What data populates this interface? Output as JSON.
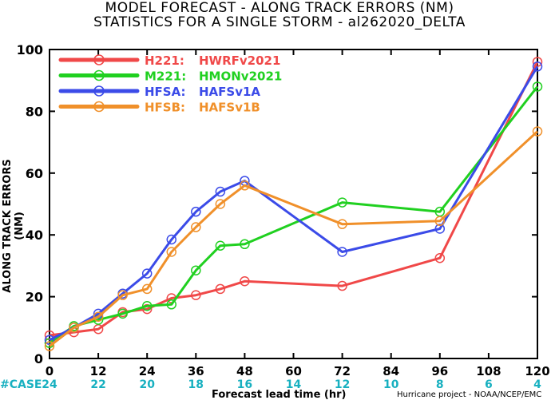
{
  "title_line1": "MODEL FORECAST - ALONG TRACK ERRORS (NM)",
  "title_line2": "STATISTICS FOR A SINGLE STORM - al262020_DELTA",
  "case_label": "#CASE",
  "credit": "Hurricane project - NOAA/NCEP/EMC",
  "chart_data": {
    "type": "line",
    "xlabel": "Forecast lead time (hr)",
    "ylabel": "ALONG TRACK ERRORS (NM)",
    "xlim": [
      0,
      120
    ],
    "ylim": [
      0,
      100
    ],
    "xticks": [
      0,
      12,
      24,
      36,
      48,
      60,
      72,
      84,
      96,
      108,
      120
    ],
    "yticks": [
      0,
      20,
      40,
      60,
      80,
      100
    ],
    "case_counts": [
      {
        "x": 0,
        "n": "24"
      },
      {
        "x": 12,
        "n": "22"
      },
      {
        "x": 24,
        "n": "20"
      },
      {
        "x": 36,
        "n": "18"
      },
      {
        "x": 48,
        "n": "16"
      },
      {
        "x": 60,
        "n": "14"
      },
      {
        "x": 72,
        "n": "12"
      },
      {
        "x": 84,
        "n": "10"
      },
      {
        "x": 96,
        "n": "8"
      },
      {
        "x": 108,
        "n": "6"
      },
      {
        "x": 120,
        "n": "4"
      }
    ],
    "legend_position": "top-left",
    "grid": false,
    "series": [
      {
        "name": "H221:",
        "desc": "HWRFv2021",
        "color": "#f04848",
        "x": [
          0,
          6,
          12,
          18,
          24,
          30,
          36,
          42,
          48,
          72,
          96,
          120
        ],
        "y": [
          7.5,
          8.5,
          9.5,
          15,
          16,
          19.5,
          20.5,
          22.5,
          25,
          23.5,
          32.5,
          96
        ]
      },
      {
        "name": "M221:",
        "desc": "HMONv2021",
        "color": "#20d020",
        "x": [
          0,
          6,
          12,
          18,
          24,
          30,
          36,
          42,
          48,
          72,
          96,
          120
        ],
        "y": [
          5,
          10.5,
          12.5,
          14.5,
          17,
          17.5,
          28.5,
          36.5,
          37,
          50.5,
          47.5,
          88
        ]
      },
      {
        "name": "HFSA:",
        "desc": "HAFSv1A",
        "color": "#3b4be8",
        "x": [
          0,
          6,
          12,
          18,
          24,
          30,
          36,
          42,
          48,
          72,
          96,
          120
        ],
        "y": [
          6,
          10,
          14.5,
          21,
          27.5,
          38.5,
          47.5,
          54,
          57.5,
          34.5,
          42,
          94.5
        ]
      },
      {
        "name": "HFSB:",
        "desc": "HAFSv1B",
        "color": "#f0902a",
        "x": [
          0,
          6,
          12,
          18,
          24,
          30,
          36,
          42,
          48,
          72,
          96,
          120
        ],
        "y": [
          4,
          10,
          13.5,
          20.5,
          22.5,
          34.5,
          42.5,
          50,
          56,
          43.5,
          44.5,
          73.5
        ]
      }
    ]
  }
}
